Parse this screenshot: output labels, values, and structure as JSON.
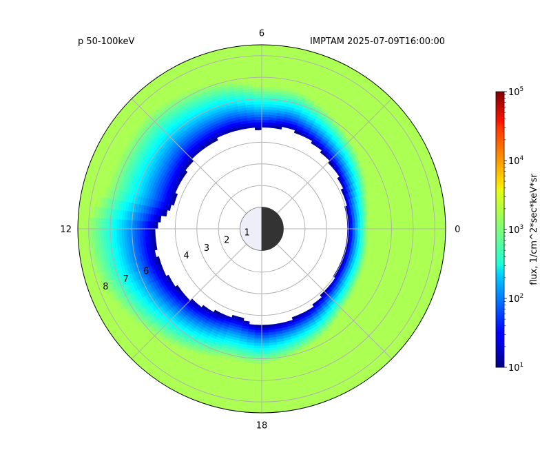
{
  "chart_data": {
    "type": "heatmap",
    "projection": "polar",
    "title_left": "p 50-100keV",
    "title_right": "IMPTAM 2025-07-09T16:00:00",
    "angular_axis": {
      "quantity": "MLT",
      "tick_labels": [
        {
          "value": 0,
          "label": "0"
        },
        {
          "value": 6,
          "label": "6"
        },
        {
          "value": 12,
          "label": "12"
        },
        {
          "value": 18,
          "label": "18"
        }
      ],
      "gridline_step_hours": 3
    },
    "radial_axis": {
      "quantity": "L",
      "ticks": [
        1,
        2,
        3,
        4,
        6,
        7,
        8
      ],
      "tick_labels": [
        "1",
        "2",
        "3",
        "4",
        "6",
        "7",
        "8"
      ],
      "range": [
        0,
        8.5
      ]
    },
    "grid": true,
    "earth": {
      "radius": 1,
      "night_side": "dark",
      "day_side": "light"
    },
    "colorbar": {
      "label": "flux, 1/cm^2*sec*keV*sr",
      "scale": "log",
      "range": [
        10,
        100000
      ],
      "colormap": "jet",
      "tick_labels": [
        {
          "value": 10,
          "base": "10",
          "exp": "1"
        },
        {
          "value": 100,
          "base": "10",
          "exp": "2"
        },
        {
          "value": 1000,
          "base": "10",
          "exp": "3"
        },
        {
          "value": 10000,
          "base": "10",
          "exp": "4"
        },
        {
          "value": 100000,
          "base": "10",
          "exp": "5"
        }
      ]
    },
    "flux_field": {
      "outer_background_flux": 1500,
      "inner_boundary_L_by_MLT": [
        {
          "mlt": 0,
          "L": 4.0
        },
        {
          "mlt": 1,
          "L": 4.0
        },
        {
          "mlt": 2,
          "L": 4.2
        },
        {
          "mlt": 3,
          "L": 4.4
        },
        {
          "mlt": 4,
          "L": 4.6
        },
        {
          "mlt": 5,
          "L": 4.8
        },
        {
          "mlt": 6,
          "L": 4.6
        },
        {
          "mlt": 7,
          "L": 4.7
        },
        {
          "mlt": 8,
          "L": 4.6
        },
        {
          "mlt": 9,
          "L": 4.5
        },
        {
          "mlt": 10,
          "L": 4.3
        },
        {
          "mlt": 11,
          "L": 4.2
        },
        {
          "mlt": 12,
          "L": 4.9
        },
        {
          "mlt": 13,
          "L": 5.0
        },
        {
          "mlt": 14,
          "L": 4.8
        },
        {
          "mlt": 15,
          "L": 4.6
        },
        {
          "mlt": 16,
          "L": 4.4
        },
        {
          "mlt": 17,
          "L": 4.2
        },
        {
          "mlt": 18,
          "L": 4.5
        },
        {
          "mlt": 19,
          "L": 4.4
        },
        {
          "mlt": 20,
          "L": 4.3
        },
        {
          "mlt": 21,
          "L": 4.1
        },
        {
          "mlt": 22,
          "L": 4.0
        },
        {
          "mlt": 23,
          "L": 4.0
        }
      ],
      "ring_width_L_by_MLT": [
        {
          "mlt": 0,
          "width": 0.9
        },
        {
          "mlt": 3,
          "width": 1.4
        },
        {
          "mlt": 6,
          "width": 2.0
        },
        {
          "mlt": 9,
          "width": 3.0
        },
        {
          "mlt": 12,
          "width": 3.3
        },
        {
          "mlt": 15,
          "width": 2.4
        },
        {
          "mlt": 18,
          "width": 1.8
        },
        {
          "mlt": 21,
          "width": 1.2
        },
        {
          "mlt": 24,
          "width": 0.9
        }
      ],
      "inner_edge_flux": 10
    }
  }
}
